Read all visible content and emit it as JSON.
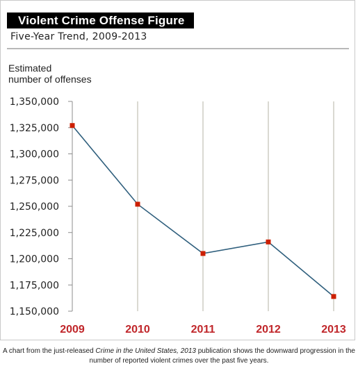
{
  "chart_data": {
    "type": "line",
    "title": "Violent Crime Offense Figure",
    "subtitle": "Five-Year Trend, 2009-2013",
    "ylabel_lines": [
      "Estimated",
      "number of offenses"
    ],
    "xlabel": "",
    "categories": [
      "2009",
      "2010",
      "2011",
      "2012",
      "2013"
    ],
    "series": [
      {
        "values": [
          1327000,
          1252000,
          1205000,
          1216000,
          1164000
        ]
      }
    ],
    "ylim": [
      1150000,
      1350000
    ],
    "yticks": [
      1350000,
      1325000,
      1300000,
      1275000,
      1250000,
      1225000,
      1200000,
      1175000,
      1150000
    ],
    "ytick_labels": [
      "1,350,000",
      "1,325,000",
      "1,300,000",
      "1,275,000",
      "1,250,000",
      "1,225,000",
      "1,200,000",
      "1,175,000",
      "1,150,000"
    ],
    "grid": "vertical",
    "colors": {
      "line": "#2f5f7d",
      "marker": "#cc1f00",
      "x_tick_label": "#c0262a",
      "grid": "#b5b3a4",
      "axis": "#8c8c8c"
    }
  },
  "caption": {
    "prefix": "A chart from the just-released ",
    "italic1": "Crime in the United States, 2013",
    "suffix": " publication shows the downward progression in the number of reported violent crimes over the past five years."
  }
}
